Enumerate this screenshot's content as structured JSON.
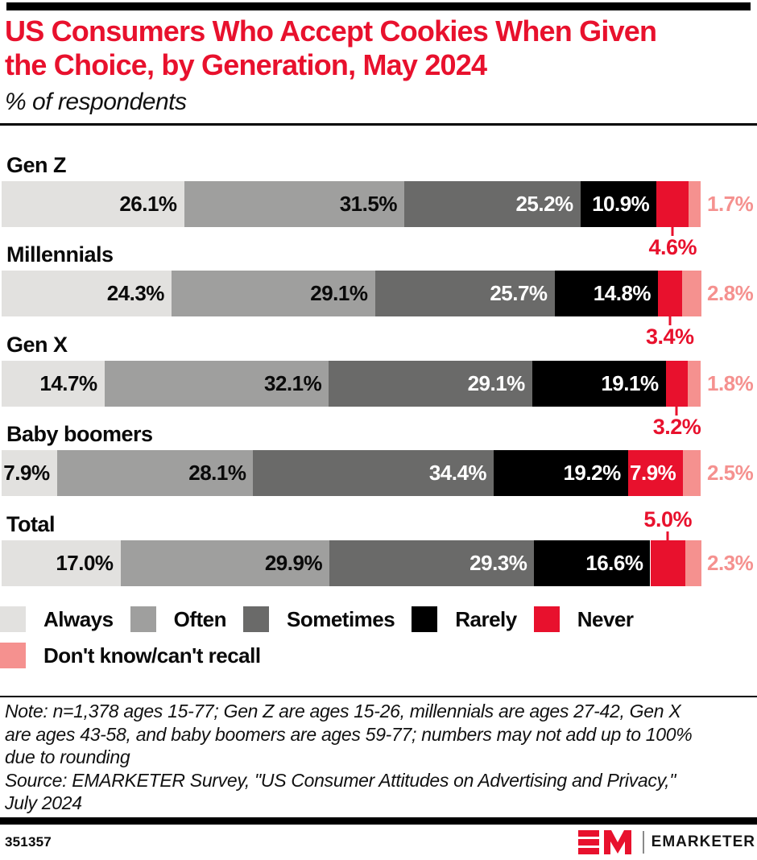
{
  "header": {
    "title": "US Consumers Who Accept Cookies When Given\nthe Choice, by Generation, May 2024",
    "subtitle": "% of respondents"
  },
  "chart_data": {
    "type": "bar",
    "stacked": true,
    "orientation": "horizontal",
    "title": "US Consumers Who Accept Cookies When Given the Choice, by Generation, May 2024",
    "value_suffix": "%",
    "xlim": [
      0,
      100
    ],
    "grid": false,
    "legend_position": "bottom",
    "categories": [
      "Gen Z",
      "Millennials",
      "Gen X",
      "Baby boomers",
      "Total"
    ],
    "series": [
      {
        "name": "Always",
        "color": "#e2e1df",
        "text_color": "#0a0a0a",
        "label": "inside",
        "values": [
          26.1,
          24.3,
          14.7,
          7.9,
          17.0
        ]
      },
      {
        "name": "Often",
        "color": "#9f9f9e",
        "text_color": "#0a0a0a",
        "label": "inside",
        "values": [
          31.5,
          29.1,
          32.1,
          28.1,
          29.9
        ]
      },
      {
        "name": "Sometimes",
        "color": "#6a6a69",
        "text_color": "#ffffff",
        "label": "inside",
        "values": [
          25.2,
          25.7,
          29.1,
          34.4,
          29.3
        ]
      },
      {
        "name": "Rarely",
        "color": "#000000",
        "text_color": "#ffffff",
        "label": "inside",
        "values": [
          10.9,
          14.8,
          19.1,
          19.2,
          16.6
        ]
      },
      {
        "name": "Never",
        "color": "#e8112d",
        "text_color": "#ffffff",
        "label": "callout",
        "values": [
          4.6,
          3.4,
          3.2,
          7.9,
          5.0
        ]
      },
      {
        "name": "Don't know/can't recall",
        "color": "#f5918f",
        "text_color": "#f5918f",
        "label": "outside-right",
        "values": [
          1.7,
          2.8,
          1.8,
          2.5,
          2.3
        ]
      }
    ],
    "never_label_positions": [
      "below",
      "below",
      "below",
      "inside",
      "above"
    ],
    "legend_rows": [
      [
        "Always",
        "Often",
        "Sometimes",
        "Rarely",
        "Never"
      ],
      [
        "Don't know/can't recall"
      ]
    ]
  },
  "layout": {
    "chart_top": 190,
    "row_pitch": 111.4
  },
  "footnote": {
    "note": "Note: n=1,378 ages 15-77; Gen Z are ages 15-26, millennials are ages 27-42, Gen X\nare ages 43-58, and baby boomers are ages 59-77; numbers may not add up to 100%\ndue to rounding",
    "source": "Source: EMARKETER Survey, \"US Consumer Attitudes on Advertising and Privacy,\"\nJuly 2024"
  },
  "footer": {
    "chart_id": "351357",
    "brand": "EMARKETER"
  },
  "colors": {
    "accent_red": "#e8112d",
    "pink": "#f5918f",
    "black": "#000000"
  }
}
